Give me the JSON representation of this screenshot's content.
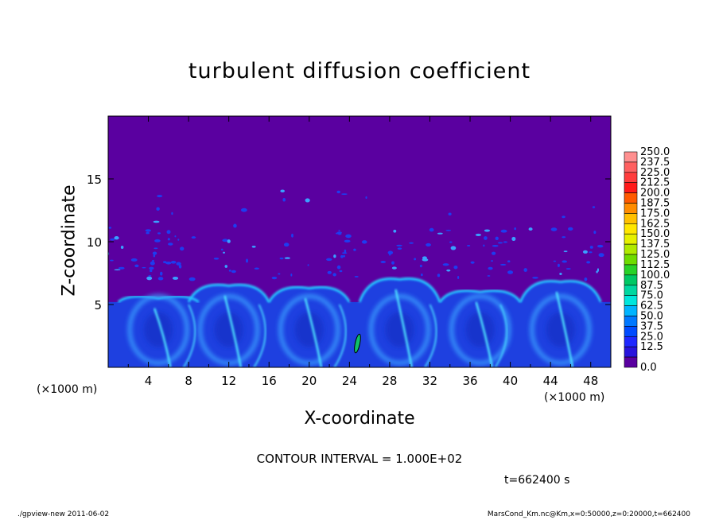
{
  "chart_data": {
    "type": "heatmap",
    "title": "turbulent diffusion coefficient",
    "xlabel": "X-coordinate",
    "ylabel": "Z-coordinate",
    "x_unit": "(×1000 m)",
    "y_unit": "(×1000 m)",
    "xlim": [
      0,
      50
    ],
    "ylim": [
      0,
      20
    ],
    "x_ticks": [
      4,
      8,
      12,
      16,
      20,
      24,
      28,
      32,
      36,
      40,
      44,
      48
    ],
    "y_ticks": [
      5,
      10,
      15
    ],
    "colorbar": {
      "levels": [
        "250.0",
        "237.5",
        "225.0",
        "212.5",
        "200.0",
        "187.5",
        "175.0",
        "162.5",
        "150.0",
        "137.5",
        "125.0",
        "112.5",
        "100.0",
        "87.5",
        "75.0",
        "62.5",
        "50.0",
        "37.5",
        "25.0",
        "12.5",
        "0.0"
      ],
      "colors": [
        "#ff9090",
        "#ff6060",
        "#ff3c3c",
        "#ff1a1a",
        "#ff5a00",
        "#ff8c00",
        "#ffc000",
        "#ffe600",
        "#e6f000",
        "#b0ea00",
        "#6edc00",
        "#28d228",
        "#00c864",
        "#00d7a0",
        "#00e6dc",
        "#00b4ff",
        "#0078ff",
        "#004bff",
        "#1e28ff",
        "#2814dc",
        "#5a00a0"
      ]
    },
    "background_color": "#5a00a0",
    "plumes": [
      {
        "x": 5,
        "top": 5.5
      },
      {
        "x": 12,
        "top": 6.5
      },
      {
        "x": 20,
        "top": 6.3
      },
      {
        "x": 29,
        "top": 7.0
      },
      {
        "x": 37,
        "top": 6.0
      },
      {
        "x": 45,
        "top": 6.8
      }
    ],
    "contour_interval": "CONTOUR INTERVAL = 1.000E+02",
    "time_label": "t=662400 s"
  },
  "footer": {
    "left": "./gpview-new   2011-06-02",
    "right": "MarsCond_Km.nc@Km,x=0:50000,z=0:20000,t=662400"
  }
}
